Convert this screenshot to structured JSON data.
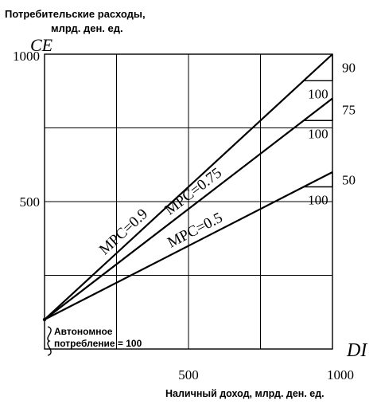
{
  "chart_data": {
    "type": "line",
    "ylabel_title": "Потребительские расходы,",
    "ylabel_unit": "млрд. ден. ед.",
    "ylabel_symbol": "CE",
    "xlabel": "Наличный доход, млрд. ден. ед.",
    "xlabel_symbol": "DI",
    "xlim": [
      0,
      1000
    ],
    "ylim": [
      0,
      1000
    ],
    "x_ticks": [
      500,
      1000
    ],
    "x_tick_labels": [
      "500",
      "1000"
    ],
    "y_ticks": [
      500,
      1000
    ],
    "y_tick_labels": [
      "500",
      "1000"
    ],
    "grid": true,
    "series": [
      {
        "name": "MPC=0.9",
        "x": [
          0,
          1000
        ],
        "y": [
          100,
          1000
        ]
      },
      {
        "name": "MPC=0.75",
        "x": [
          0,
          1000
        ],
        "y": [
          100,
          850
        ]
      },
      {
        "name": "MPC=0.5",
        "x": [
          0,
          1000
        ],
        "y": [
          100,
          600
        ]
      }
    ],
    "slope_annotations": [
      {
        "rise": "90",
        "run": "100"
      },
      {
        "rise": "75",
        "run": "100"
      },
      {
        "rise": "50",
        "run": "100"
      }
    ],
    "annotation": [
      "Автономное",
      "потребление = 100"
    ]
  }
}
